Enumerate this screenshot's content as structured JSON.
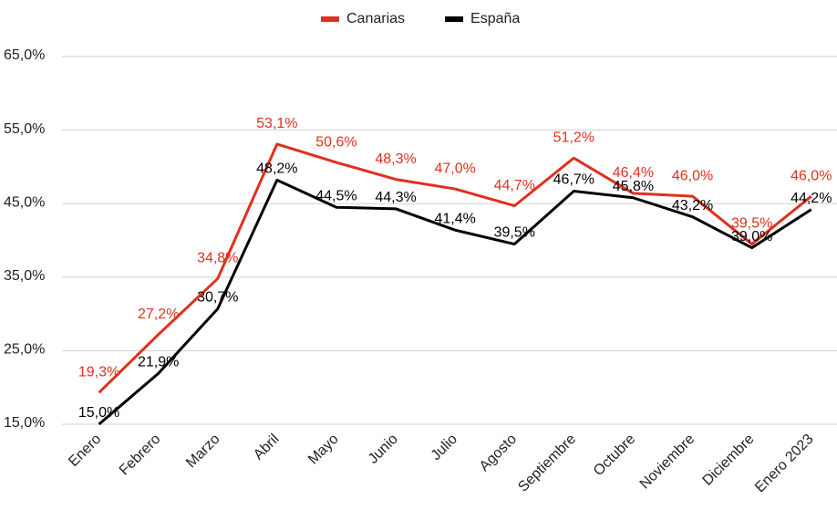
{
  "chart_data": {
    "type": "line",
    "categories": [
      "Enero",
      "Febrero",
      "Marzo",
      "Abril",
      "Mayo",
      "Junio",
      "Julio",
      "Agosto",
      "Septiembre",
      "Octubre",
      "Noviembre",
      "Diciembre",
      "Enero 2023"
    ],
    "series": [
      {
        "name": "Canarias",
        "color": "#e0301e",
        "values": [
          19.3,
          27.2,
          34.8,
          53.1,
          50.6,
          48.3,
          47.0,
          44.7,
          51.2,
          46.4,
          46.0,
          39.5,
          46.0
        ],
        "value_labels": [
          "19,3%",
          "27,2%",
          "34,8%",
          "53,1%",
          "50,6%",
          "48,3%",
          "47,0%",
          "44,7%",
          "51,2%",
          "46,4%",
          "46,0%",
          "39,5%",
          "46,0%"
        ]
      },
      {
        "name": "España",
        "color": "#000000",
        "values": [
          15.0,
          21.9,
          30.7,
          48.2,
          44.5,
          44.3,
          41.4,
          39.5,
          46.7,
          45.8,
          43.2,
          39.0,
          44.2
        ],
        "value_labels": [
          "15,0%",
          "21,9%",
          "30,7%",
          "48,2%",
          "44,5%",
          "44,3%",
          "41,4%",
          "39,5%",
          "46,7%",
          "45,8%",
          "43,2%",
          "39,0%",
          "44,2%"
        ]
      }
    ],
    "ylim": [
      15,
      65
    ],
    "yticks": [
      {
        "value": 15,
        "label": "15,0%"
      },
      {
        "value": 25,
        "label": "25,0%"
      },
      {
        "value": 35,
        "label": "35,0%"
      },
      {
        "value": 45,
        "label": "45,0%"
      },
      {
        "value": 55,
        "label": "55,0%"
      },
      {
        "value": 65,
        "label": "65,0%"
      }
    ],
    "grid": true,
    "legend": "top"
  }
}
